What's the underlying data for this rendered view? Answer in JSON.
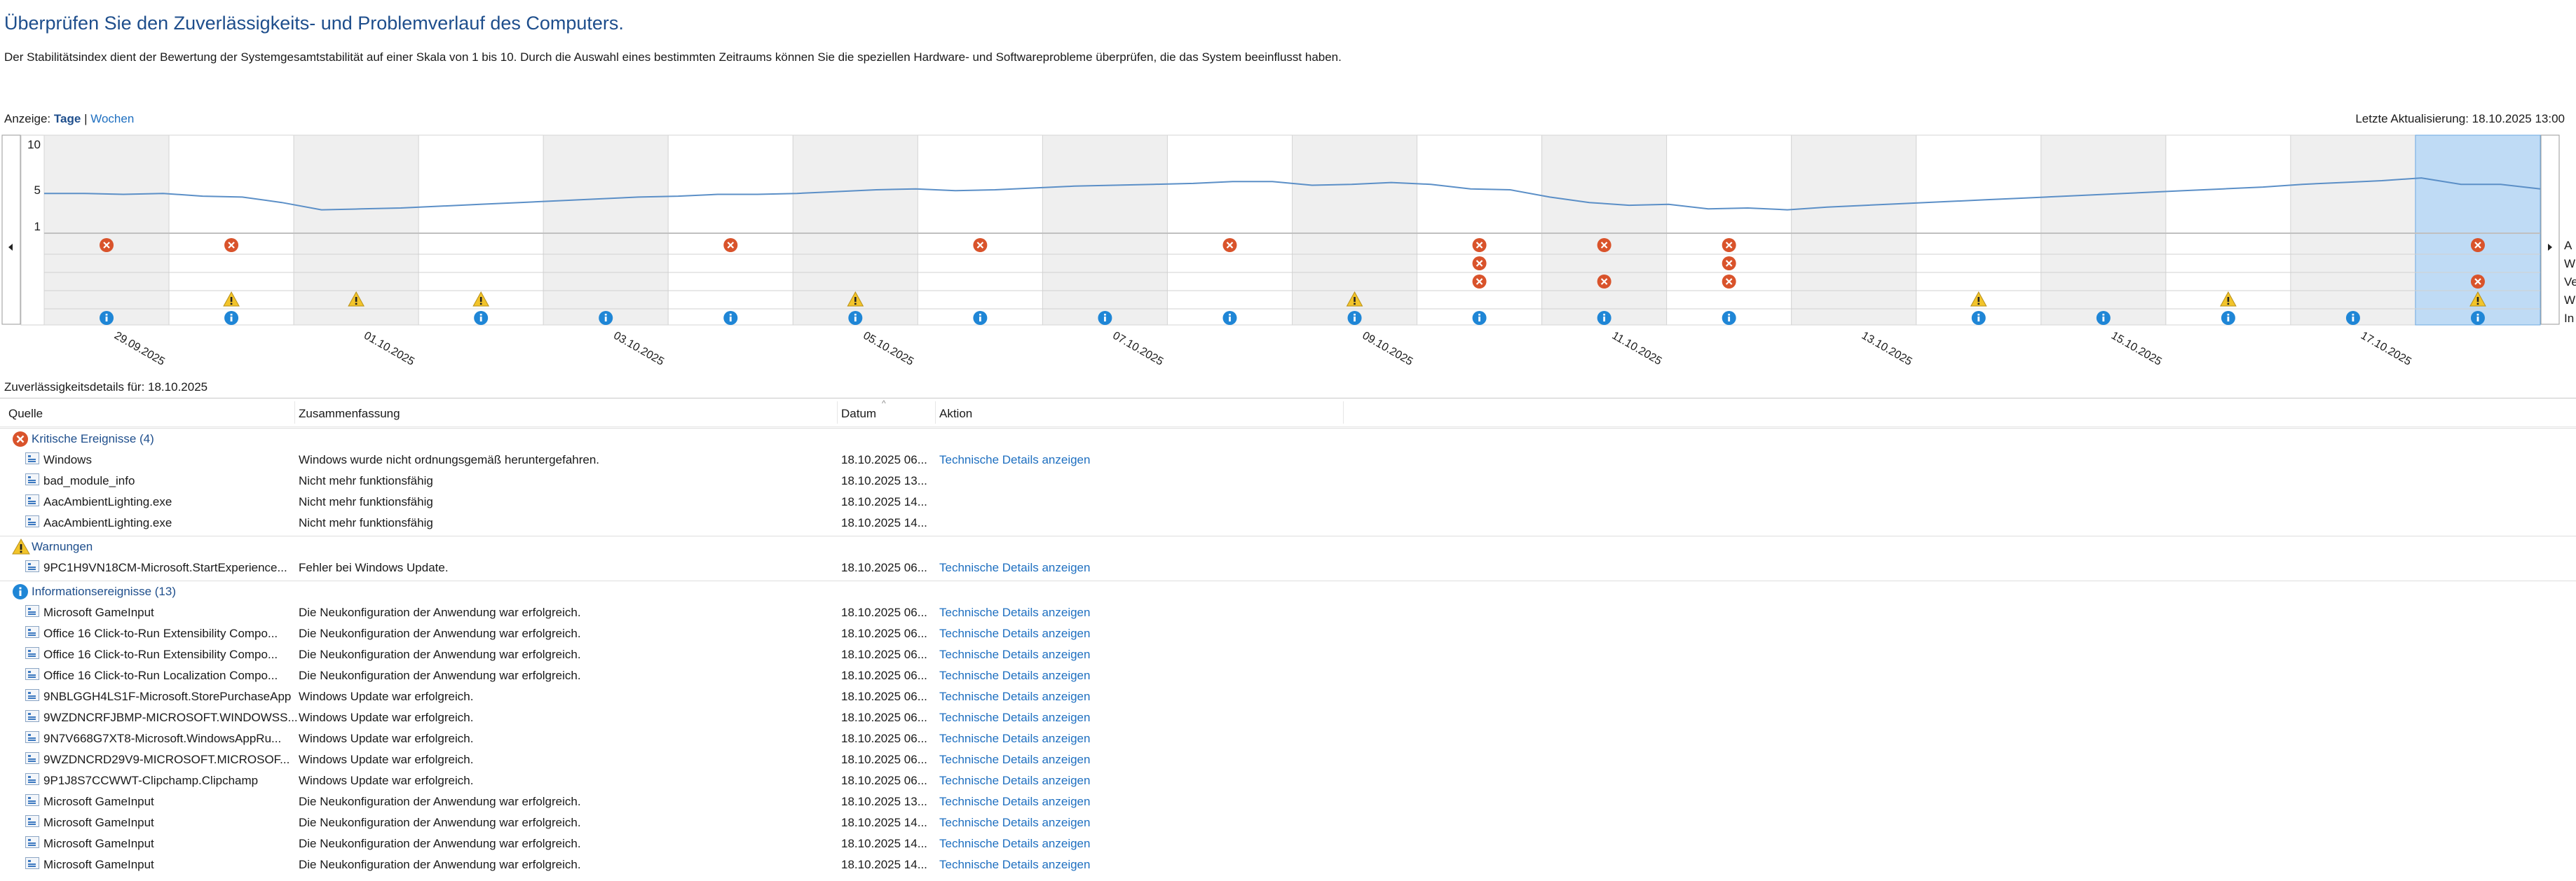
{
  "header": {
    "title": "Überprüfen Sie den Zuverlässigkeits- und Problemverlauf des Computers.",
    "description": "Der Stabilitätsindex dient der Bewertung der Systemgesamtstabilität auf einer Skala von 1 bis 10. Durch die Auswahl eines bestimmten Zeitraums können Sie die speziellen Hardware- und Softwareprobleme überprüfen, die das System beeinflusst haben."
  },
  "view": {
    "label": "Anzeige:",
    "days": "Tage",
    "separator": "|",
    "weeks": "Wochen"
  },
  "last_update": "Letzte Aktualisierung: 18.10.2025 13:00",
  "chart_data": {
    "type": "line",
    "y_ticks": [
      "10",
      "5",
      "1"
    ],
    "ylim": [
      1,
      10
    ],
    "date_labels": [
      "29.09.2025",
      "01.10.2025",
      "03.10.2025",
      "05.10.2025",
      "07.10.2025",
      "09.10.2025",
      "11.10.2025",
      "13.10.2025",
      "15.10.2025",
      "17.10.2025"
    ],
    "days": 20,
    "selected_day": 19,
    "row_labels": [
      "A",
      "W",
      "Ve",
      "W",
      "In"
    ],
    "stability": [
      4.6,
      4.6,
      4.5,
      4.6,
      4.3,
      4.2,
      3.6,
      2.8,
      2.9,
      3.0,
      3.2,
      3.4,
      3.6,
      3.8,
      4.0,
      4.2,
      4.3,
      4.5,
      4.5,
      4.6,
      4.8,
      5.0,
      5.1,
      4.9,
      5.0,
      5.2,
      5.4,
      5.5,
      5.6,
      5.7,
      5.9,
      5.9,
      5.5,
      5.6,
      5.8,
      5.6,
      5.1,
      5.0,
      4.2,
      3.6,
      3.3,
      3.4,
      2.9,
      3.0,
      2.8,
      3.1,
      3.3,
      3.5,
      3.7,
      3.9,
      4.1,
      4.3,
      4.5,
      4.7,
      4.9,
      5.1,
      5.3,
      5.6,
      5.8,
      6.0,
      6.3,
      5.6,
      5.6,
      5.1
    ],
    "events": [
      {
        "row": 0,
        "day": 0,
        "type": "error"
      },
      {
        "row": 0,
        "day": 1,
        "type": "error"
      },
      {
        "row": 0,
        "day": 5,
        "type": "error"
      },
      {
        "row": 0,
        "day": 7,
        "type": "error"
      },
      {
        "row": 0,
        "day": 9,
        "type": "error"
      },
      {
        "row": 0,
        "day": 11,
        "type": "error"
      },
      {
        "row": 0,
        "day": 12,
        "type": "error"
      },
      {
        "row": 0,
        "day": 13,
        "type": "error"
      },
      {
        "row": 0,
        "day": 19,
        "type": "error"
      },
      {
        "row": 1,
        "day": 11,
        "type": "error"
      },
      {
        "row": 1,
        "day": 13,
        "type": "error"
      },
      {
        "row": 2,
        "day": 11,
        "type": "error"
      },
      {
        "row": 2,
        "day": 12,
        "type": "error"
      },
      {
        "row": 2,
        "day": 13,
        "type": "error"
      },
      {
        "row": 2,
        "day": 19,
        "type": "error"
      },
      {
        "row": 3,
        "day": 1,
        "type": "warning"
      },
      {
        "row": 3,
        "day": 2,
        "type": "warning"
      },
      {
        "row": 3,
        "day": 3,
        "type": "warning"
      },
      {
        "row": 3,
        "day": 6,
        "type": "warning"
      },
      {
        "row": 3,
        "day": 10,
        "type": "warning"
      },
      {
        "row": 3,
        "day": 15,
        "type": "warning"
      },
      {
        "row": 3,
        "day": 17,
        "type": "warning"
      },
      {
        "row": 3,
        "day": 19,
        "type": "warning"
      },
      {
        "row": 4,
        "day": 0,
        "type": "info"
      },
      {
        "row": 4,
        "day": 1,
        "type": "info"
      },
      {
        "row": 4,
        "day": 3,
        "type": "info"
      },
      {
        "row": 4,
        "day": 4,
        "type": "info"
      },
      {
        "row": 4,
        "day": 5,
        "type": "info"
      },
      {
        "row": 4,
        "day": 6,
        "type": "info"
      },
      {
        "row": 4,
        "day": 7,
        "type": "info"
      },
      {
        "row": 4,
        "day": 8,
        "type": "info"
      },
      {
        "row": 4,
        "day": 9,
        "type": "info"
      },
      {
        "row": 4,
        "day": 10,
        "type": "info"
      },
      {
        "row": 4,
        "day": 11,
        "type": "info"
      },
      {
        "row": 4,
        "day": 12,
        "type": "info"
      },
      {
        "row": 4,
        "day": 13,
        "type": "info"
      },
      {
        "row": 4,
        "day": 15,
        "type": "info"
      },
      {
        "row": 4,
        "day": 16,
        "type": "info"
      },
      {
        "row": 4,
        "day": 17,
        "type": "info"
      },
      {
        "row": 4,
        "day": 18,
        "type": "info"
      },
      {
        "row": 4,
        "day": 19,
        "type": "info"
      }
    ],
    "colors": {
      "line": "#5b8fc7",
      "selected": "#bfdbf5",
      "error": "#d9532b",
      "warning": "#f2c42a",
      "info": "#1f86d6"
    }
  },
  "details": {
    "title": "Zuverlässigkeitsdetails für: 18.10.2025",
    "columns": {
      "source": "Quelle",
      "summary": "Zusammenfassung",
      "date": "Datum",
      "action": "Aktion"
    },
    "groups": [
      {
        "type": "error",
        "label": "Kritische Ereignisse (4)",
        "rows": [
          {
            "source": "Windows",
            "summary": "Windows wurde nicht ordnungsgemäß heruntergefahren.",
            "date": "18.10.2025 06...",
            "action": "Technische Details anzeigen"
          },
          {
            "source": "bad_module_info",
            "summary": "Nicht mehr funktionsfähig",
            "date": "18.10.2025 13...",
            "action": ""
          },
          {
            "source": "AacAmbientLighting.exe",
            "summary": "Nicht mehr funktionsfähig",
            "date": "18.10.2025 14...",
            "action": ""
          },
          {
            "source": "AacAmbientLighting.exe",
            "summary": "Nicht mehr funktionsfähig",
            "date": "18.10.2025 14...",
            "action": ""
          }
        ]
      },
      {
        "type": "warning",
        "label": "Warnungen",
        "rows": [
          {
            "source": "9PC1H9VN18CM-Microsoft.StartExperience...",
            "summary": "Fehler bei Windows Update.",
            "date": "18.10.2025 06...",
            "action": "Technische Details anzeigen"
          }
        ]
      },
      {
        "type": "info",
        "label": "Informationsereignisse (13)",
        "rows": [
          {
            "source": "Microsoft GameInput",
            "summary": "Die Neukonfiguration der Anwendung war erfolgreich.",
            "date": "18.10.2025 06...",
            "action": "Technische Details anzeigen"
          },
          {
            "source": "Office 16 Click-to-Run Extensibility Compo...",
            "summary": "Die Neukonfiguration der Anwendung war erfolgreich.",
            "date": "18.10.2025 06...",
            "action": "Technische Details anzeigen"
          },
          {
            "source": "Office 16 Click-to-Run Extensibility Compo...",
            "summary": "Die Neukonfiguration der Anwendung war erfolgreich.",
            "date": "18.10.2025 06...",
            "action": "Technische Details anzeigen"
          },
          {
            "source": "Office 16 Click-to-Run Localization Compo...",
            "summary": "Die Neukonfiguration der Anwendung war erfolgreich.",
            "date": "18.10.2025 06...",
            "action": "Technische Details anzeigen"
          },
          {
            "source": "9NBLGGH4LS1F-Microsoft.StorePurchaseApp",
            "summary": "Windows Update war erfolgreich.",
            "date": "18.10.2025 06...",
            "action": "Technische Details anzeigen"
          },
          {
            "source": "9WZDNCRFJBMP-MICROSOFT.WINDOWSS...",
            "summary": "Windows Update war erfolgreich.",
            "date": "18.10.2025 06...",
            "action": "Technische Details anzeigen"
          },
          {
            "source": "9N7V668G7XT8-Microsoft.WindowsAppRu...",
            "summary": "Windows Update war erfolgreich.",
            "date": "18.10.2025 06...",
            "action": "Technische Details anzeigen"
          },
          {
            "source": "9WZDNCRD29V9-MICROSOFT.MICROSOF...",
            "summary": "Windows Update war erfolgreich.",
            "date": "18.10.2025 06...",
            "action": "Technische Details anzeigen"
          },
          {
            "source": "9P1J8S7CCWWT-Clipchamp.Clipchamp",
            "summary": "Windows Update war erfolgreich.",
            "date": "18.10.2025 06...",
            "action": "Technische Details anzeigen"
          },
          {
            "source": "Microsoft GameInput",
            "summary": "Die Neukonfiguration der Anwendung war erfolgreich.",
            "date": "18.10.2025 13...",
            "action": "Technische Details anzeigen"
          },
          {
            "source": "Microsoft GameInput",
            "summary": "Die Neukonfiguration der Anwendung war erfolgreich.",
            "date": "18.10.2025 14...",
            "action": "Technische Details anzeigen"
          },
          {
            "source": "Microsoft GameInput",
            "summary": "Die Neukonfiguration der Anwendung war erfolgreich.",
            "date": "18.10.2025 14...",
            "action": "Technische Details anzeigen"
          },
          {
            "source": "Microsoft GameInput",
            "summary": "Die Neukonfiguration der Anwendung war erfolgreich.",
            "date": "18.10.2025 14...",
            "action": "Technische Details anzeigen"
          }
        ]
      }
    ]
  }
}
